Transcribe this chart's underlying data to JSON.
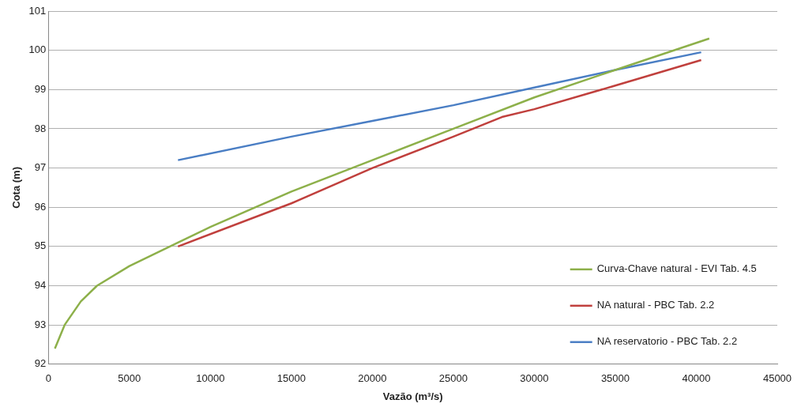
{
  "chart_data": {
    "type": "line",
    "xlabel": "Vazão (m³/s)",
    "ylabel": "Cota (m)",
    "xlim": [
      0,
      45000
    ],
    "xticks": [
      0,
      5000,
      10000,
      15000,
      20000,
      25000,
      30000,
      35000,
      40000,
      45000
    ],
    "ylim": [
      92,
      101
    ],
    "yticks": [
      92,
      93,
      94,
      95,
      96,
      97,
      98,
      99,
      100,
      101
    ],
    "grid": "y",
    "legend": "bottom right",
    "marker": "none",
    "line_style": "solid",
    "series": [
      {
        "name": "Curva-Chave natural - EVI Tab. 4.5",
        "color": "#8db04a",
        "x": [
          400,
          1000,
          2000,
          3000,
          5000,
          8000,
          10000,
          15000,
          20000,
          25000,
          30000,
          35000,
          40800
        ],
        "values": [
          92.4,
          93.0,
          93.6,
          94.0,
          94.5,
          95.1,
          95.5,
          96.4,
          97.2,
          98.0,
          98.8,
          99.5,
          100.3
        ]
      },
      {
        "name": "NA natural - PBC Tab. 2.2",
        "color": "#c0403d",
        "x": [
          8000,
          15000,
          20000,
          25000,
          28000,
          30000,
          35000,
          40300
        ],
        "values": [
          95.0,
          96.1,
          97.0,
          97.8,
          98.3,
          98.5,
          99.1,
          99.75
        ]
      },
      {
        "name": "NA reservatorio - PBC Tab. 2.2",
        "color": "#4a7ec4",
        "x": [
          8000,
          15000,
          20000,
          25000,
          30000,
          35000,
          40300
        ],
        "values": [
          97.2,
          97.8,
          98.2,
          98.6,
          99.05,
          99.5,
          99.95
        ]
      }
    ]
  }
}
